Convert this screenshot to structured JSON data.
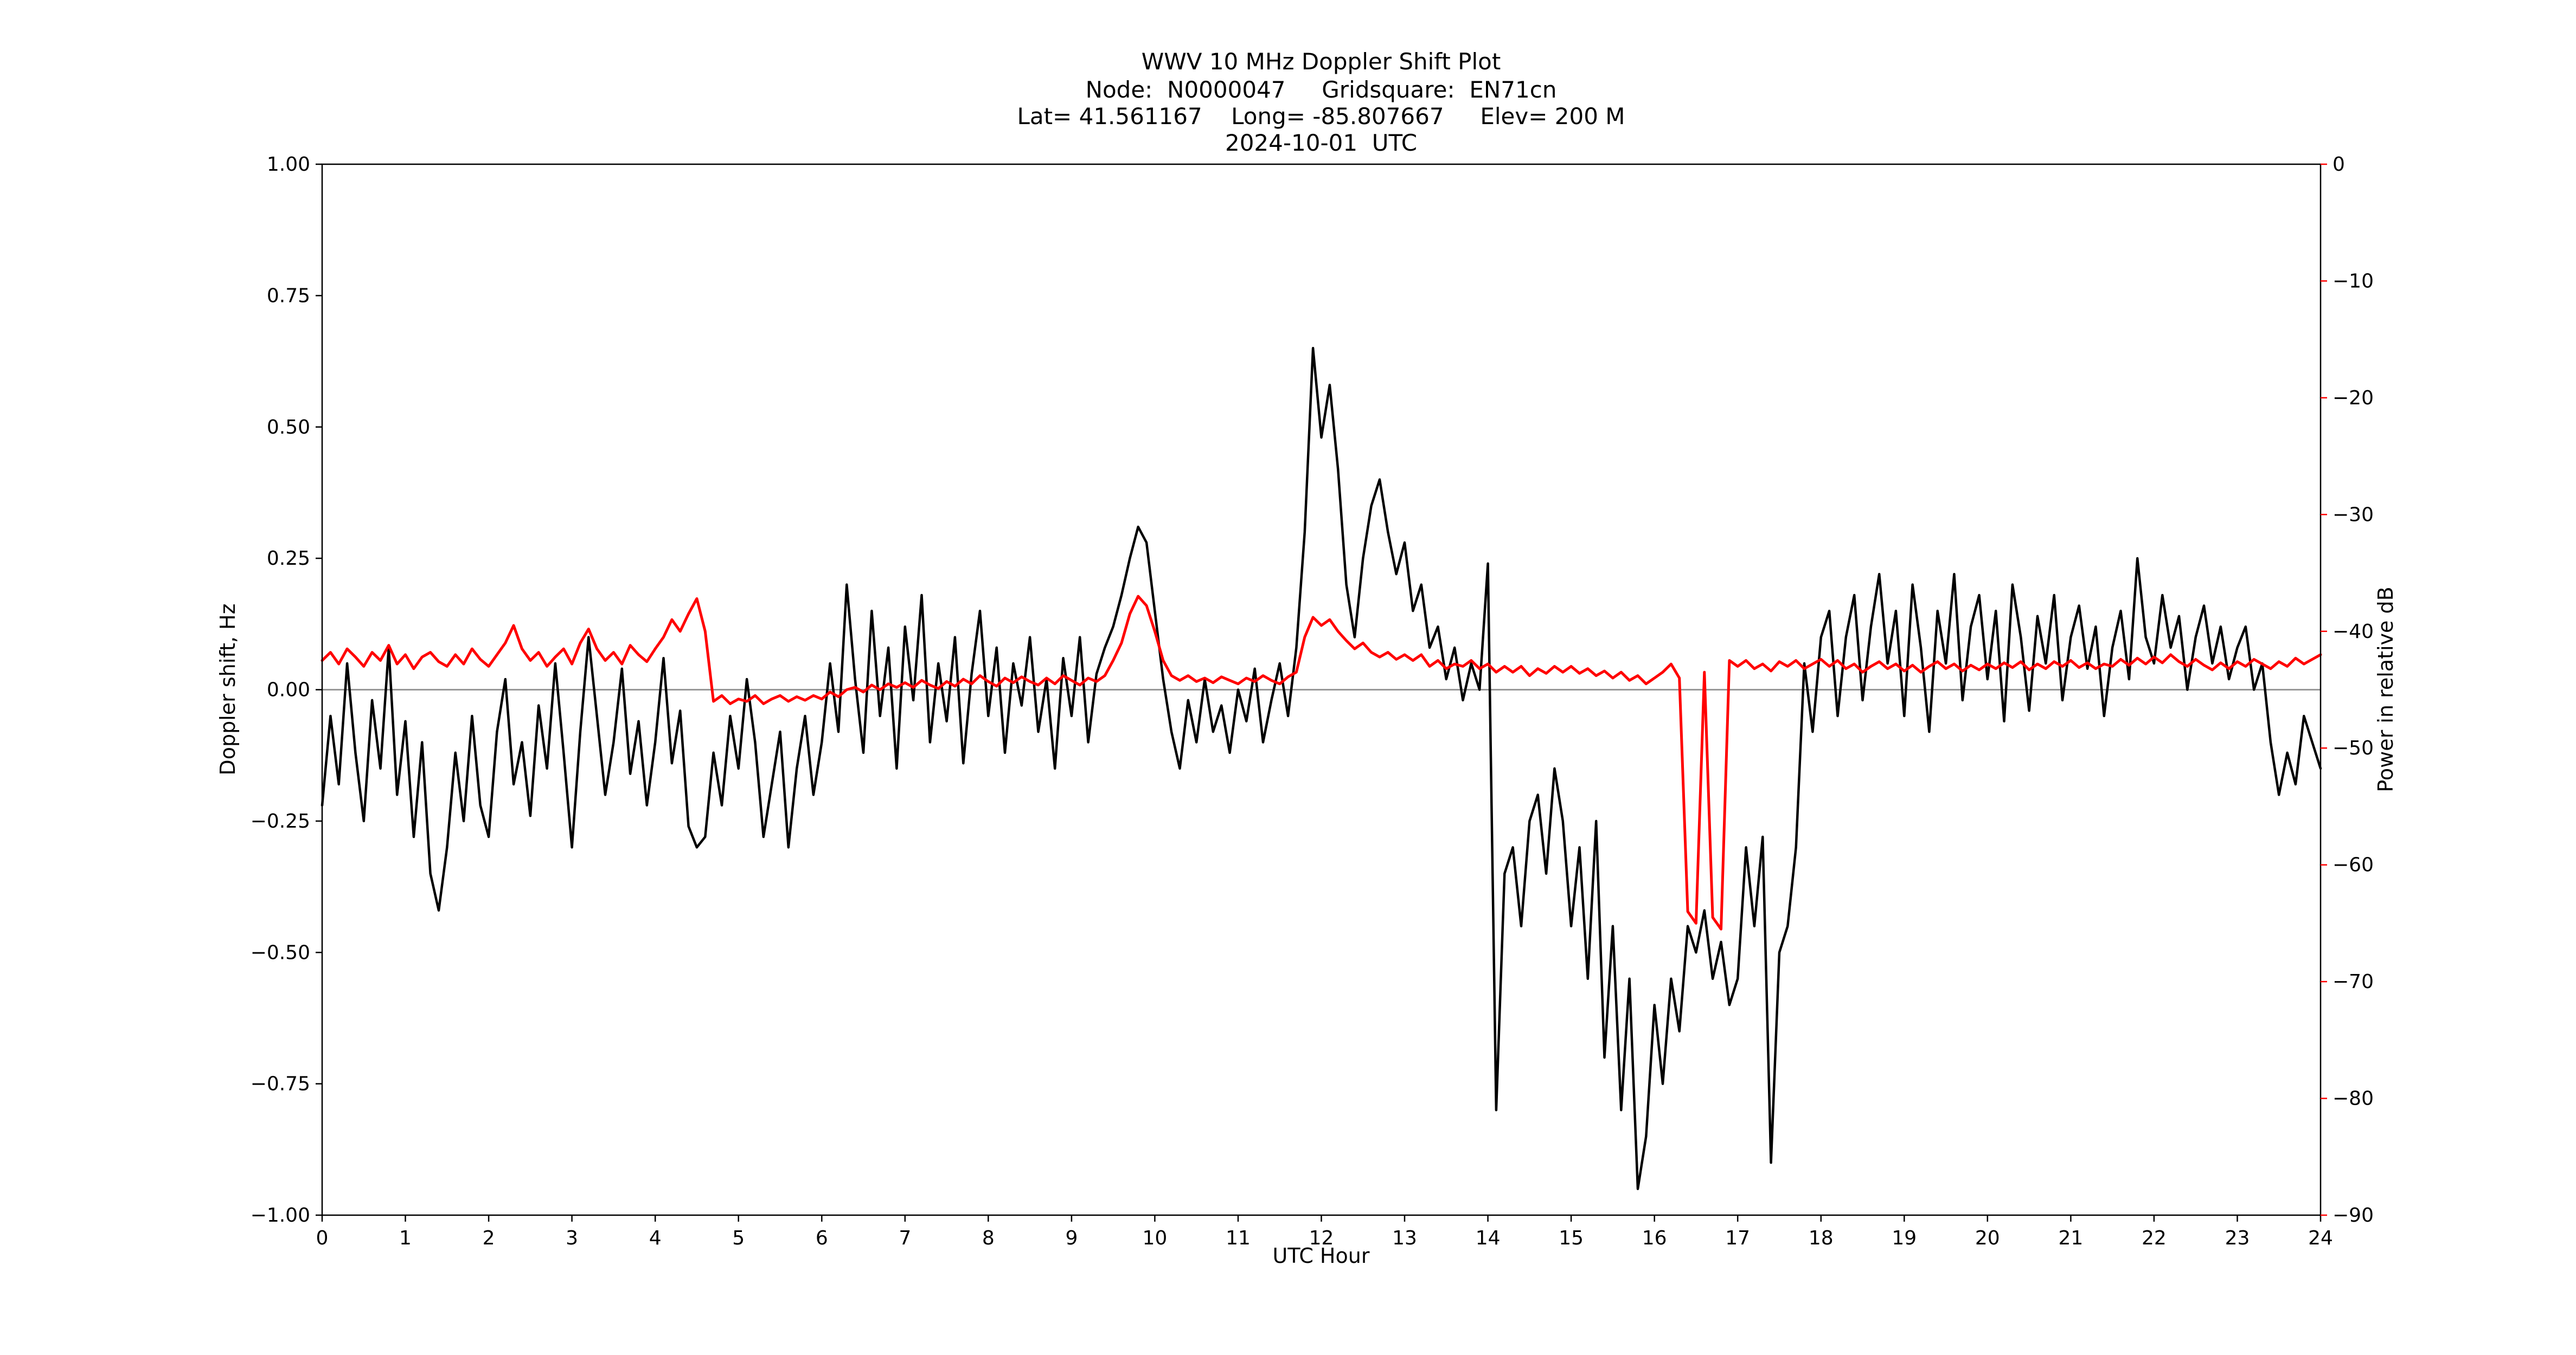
{
  "title": {
    "line1": "WWV 10 MHz Doppler Shift Plot",
    "line2": "Node:  N0000047     Gridsquare:  EN71cn",
    "line3": "Lat= 41.561167    Long= -85.807667     Elev= 200 M",
    "line4": "2024-10-01  UTC"
  },
  "axes": {
    "x_label": "UTC Hour",
    "y_left_label": "Doppler shift, Hz",
    "y_right_label": "Power in relative dB",
    "x_range": [
      0,
      24
    ],
    "y_left_range": [
      -1.0,
      1.0
    ],
    "y_right_range": [
      -90,
      0
    ],
    "x_ticks": [
      "0",
      "1",
      "2",
      "3",
      "4",
      "5",
      "6",
      "7",
      "8",
      "9",
      "10",
      "11",
      "12",
      "13",
      "14",
      "15",
      "16",
      "17",
      "18",
      "19",
      "20",
      "21",
      "22",
      "23",
      "24"
    ],
    "y_left_ticks": [
      "1.00",
      "0.75",
      "0.50",
      "0.25",
      "0.00",
      "−0.25",
      "−0.50",
      "−0.75",
      "−1.00"
    ],
    "y_right_ticks": [
      "0",
      "−10",
      "−20",
      "−30",
      "−40",
      "−50",
      "−60",
      "−70",
      "−80",
      "−90"
    ]
  },
  "colors": {
    "doppler": "#000000",
    "power": "#ff0000",
    "zero_line": "#999999",
    "frame": "#000000"
  },
  "chart_data": {
    "type": "line",
    "title": "WWV 10 MHz Doppler Shift Plot",
    "xlabel": "UTC Hour",
    "ylabel_left": "Doppler shift, Hz",
    "ylabel_right": "Power in relative dB",
    "x_start": 0,
    "x_step": 0.1,
    "n": 241,
    "xlim": [
      0,
      24
    ],
    "ylim_left": [
      -1.0,
      1.0
    ],
    "ylim_right": [
      -90,
      0
    ],
    "grid": false,
    "legend": "none",
    "series": [
      {
        "name": "Doppler shift, Hz",
        "slug": "doppler-series",
        "axis": "left",
        "color": "#000000",
        "values": [
          -0.22,
          -0.05,
          -0.18,
          0.05,
          -0.12,
          -0.25,
          -0.02,
          -0.15,
          0.08,
          -0.2,
          -0.06,
          -0.28,
          -0.1,
          -0.35,
          -0.42,
          -0.3,
          -0.12,
          -0.25,
          -0.05,
          -0.22,
          -0.28,
          -0.08,
          0.02,
          -0.18,
          -0.1,
          -0.24,
          -0.03,
          -0.15,
          0.05,
          -0.12,
          -0.3,
          -0.08,
          0.1,
          -0.05,
          -0.2,
          -0.1,
          0.04,
          -0.16,
          -0.06,
          -0.22,
          -0.1,
          0.06,
          -0.14,
          -0.04,
          -0.26,
          -0.3,
          -0.28,
          -0.12,
          -0.22,
          -0.05,
          -0.15,
          0.02,
          -0.1,
          -0.28,
          -0.18,
          -0.08,
          -0.3,
          -0.15,
          -0.05,
          -0.2,
          -0.1,
          0.05,
          -0.08,
          0.2,
          0.02,
          -0.12,
          0.15,
          -0.05,
          0.08,
          -0.15,
          0.12,
          -0.02,
          0.18,
          -0.1,
          0.05,
          -0.06,
          0.1,
          -0.14,
          0.03,
          0.15,
          -0.05,
          0.08,
          -0.12,
          0.05,
          -0.03,
          0.1,
          -0.08,
          0.02,
          -0.15,
          0.06,
          -0.05,
          0.1,
          -0.1,
          0.03,
          0.08,
          0.12,
          0.18,
          0.25,
          0.31,
          0.28,
          0.15,
          0.02,
          -0.08,
          -0.15,
          -0.02,
          -0.1,
          0.02,
          -0.08,
          -0.03,
          -0.12,
          0.0,
          -0.06,
          0.04,
          -0.1,
          -0.02,
          0.05,
          -0.05,
          0.08,
          0.3,
          0.65,
          0.48,
          0.58,
          0.42,
          0.2,
          0.1,
          0.25,
          0.35,
          0.4,
          0.3,
          0.22,
          0.28,
          0.15,
          0.2,
          0.08,
          0.12,
          0.02,
          0.08,
          -0.02,
          0.05,
          0.0,
          0.24,
          -0.8,
          -0.35,
          -0.3,
          -0.45,
          -0.25,
          -0.2,
          -0.35,
          -0.15,
          -0.25,
          -0.45,
          -0.3,
          -0.55,
          -0.25,
          -0.7,
          -0.45,
          -0.8,
          -0.55,
          -0.95,
          -0.85,
          -0.6,
          -0.75,
          -0.55,
          -0.65,
          -0.45,
          -0.5,
          -0.42,
          -0.55,
          -0.48,
          -0.6,
          -0.55,
          -0.3,
          -0.45,
          -0.28,
          -0.9,
          -0.5,
          -0.45,
          -0.3,
          0.05,
          -0.08,
          0.1,
          0.15,
          -0.05,
          0.1,
          0.18,
          -0.02,
          0.12,
          0.22,
          0.05,
          0.15,
          -0.05,
          0.2,
          0.08,
          -0.08,
          0.15,
          0.05,
          0.22,
          -0.02,
          0.12,
          0.18,
          0.02,
          0.15,
          -0.06,
          0.2,
          0.1,
          -0.04,
          0.14,
          0.05,
          0.18,
          -0.02,
          0.1,
          0.16,
          0.04,
          0.12,
          -0.05,
          0.08,
          0.15,
          0.02,
          0.25,
          0.1,
          0.05,
          0.18,
          0.08,
          0.14,
          0.0,
          0.1,
          0.16,
          0.05,
          0.12,
          0.02,
          0.08,
          0.12,
          0.0,
          0.05,
          -0.1,
          -0.2,
          -0.12,
          -0.18,
          -0.05,
          -0.1,
          -0.15
        ]
      },
      {
        "name": "Power in relative dB",
        "slug": "power-series",
        "axis": "right",
        "color": "#ff0000",
        "values": [
          -42.5,
          -41.8,
          -42.8,
          -41.5,
          -42.2,
          -43.0,
          -41.8,
          -42.5,
          -41.2,
          -42.8,
          -42.0,
          -43.2,
          -42.2,
          -41.8,
          -42.6,
          -43.0,
          -42.0,
          -42.8,
          -41.5,
          -42.4,
          -43.0,
          -42.0,
          -41.0,
          -39.5,
          -41.5,
          -42.5,
          -41.8,
          -43.0,
          -42.2,
          -41.5,
          -42.8,
          -41.0,
          -39.8,
          -41.5,
          -42.5,
          -41.8,
          -42.8,
          -41.2,
          -42.0,
          -42.6,
          -41.5,
          -40.5,
          -39.0,
          -40.0,
          -38.5,
          -37.2,
          -40.0,
          -46.0,
          -45.5,
          -46.2,
          -45.8,
          -46.0,
          -45.5,
          -46.2,
          -45.8,
          -45.5,
          -46.0,
          -45.6,
          -45.9,
          -45.5,
          -45.8,
          -45.2,
          -45.6,
          -45.0,
          -44.8,
          -45.2,
          -44.6,
          -45.0,
          -44.5,
          -44.8,
          -44.4,
          -44.8,
          -44.2,
          -44.6,
          -44.9,
          -44.3,
          -44.7,
          -44.1,
          -44.5,
          -43.8,
          -44.3,
          -44.7,
          -44.0,
          -44.4,
          -43.9,
          -44.3,
          -44.6,
          -44.0,
          -44.5,
          -43.8,
          -44.2,
          -44.6,
          -44.0,
          -44.3,
          -43.8,
          -42.5,
          -41.0,
          -38.5,
          -37.0,
          -37.8,
          -40.0,
          -42.5,
          -43.8,
          -44.2,
          -43.8,
          -44.3,
          -44.0,
          -44.4,
          -43.9,
          -44.2,
          -44.5,
          -44.0,
          -44.3,
          -43.8,
          -44.2,
          -44.5,
          -43.9,
          -43.5,
          -40.5,
          -38.8,
          -39.5,
          -39.0,
          -40.0,
          -40.8,
          -41.5,
          -41.0,
          -41.8,
          -42.2,
          -41.8,
          -42.4,
          -42.0,
          -42.5,
          -42.0,
          -43.0,
          -42.5,
          -43.2,
          -42.8,
          -43.0,
          -42.5,
          -43.2,
          -42.8,
          -43.5,
          -43.0,
          -43.5,
          -43.0,
          -43.8,
          -43.2,
          -43.6,
          -43.0,
          -43.5,
          -43.0,
          -43.6,
          -43.2,
          -43.8,
          -43.4,
          -44.0,
          -43.5,
          -44.2,
          -43.8,
          -44.5,
          -44.0,
          -43.5,
          -42.8,
          -44.0,
          -64.0,
          -65.0,
          -43.5,
          -64.5,
          -65.5,
          -42.5,
          -43.0,
          -42.5,
          -43.2,
          -42.8,
          -43.4,
          -42.6,
          -43.0,
          -42.5,
          -43.2,
          -42.8,
          -42.4,
          -43.0,
          -42.5,
          -43.2,
          -42.8,
          -43.5,
          -43.0,
          -42.6,
          -43.2,
          -42.8,
          -43.4,
          -42.9,
          -43.5,
          -43.0,
          -42.6,
          -43.2,
          -42.8,
          -43.4,
          -42.9,
          -43.3,
          -42.8,
          -43.2,
          -42.7,
          -43.1,
          -42.6,
          -43.3,
          -42.8,
          -43.2,
          -42.6,
          -43.0,
          -42.5,
          -43.1,
          -42.7,
          -43.2,
          -42.8,
          -43.0,
          -42.4,
          -42.9,
          -42.3,
          -42.8,
          -42.2,
          -42.7,
          -42.0,
          -42.6,
          -43.0,
          -42.4,
          -42.9,
          -43.3,
          -42.7,
          -43.2,
          -42.6,
          -43.0,
          -42.4,
          -42.8,
          -43.2,
          -42.6,
          -43.0,
          -42.3,
          -42.8,
          -42.4,
          -42.0
        ]
      }
    ]
  }
}
